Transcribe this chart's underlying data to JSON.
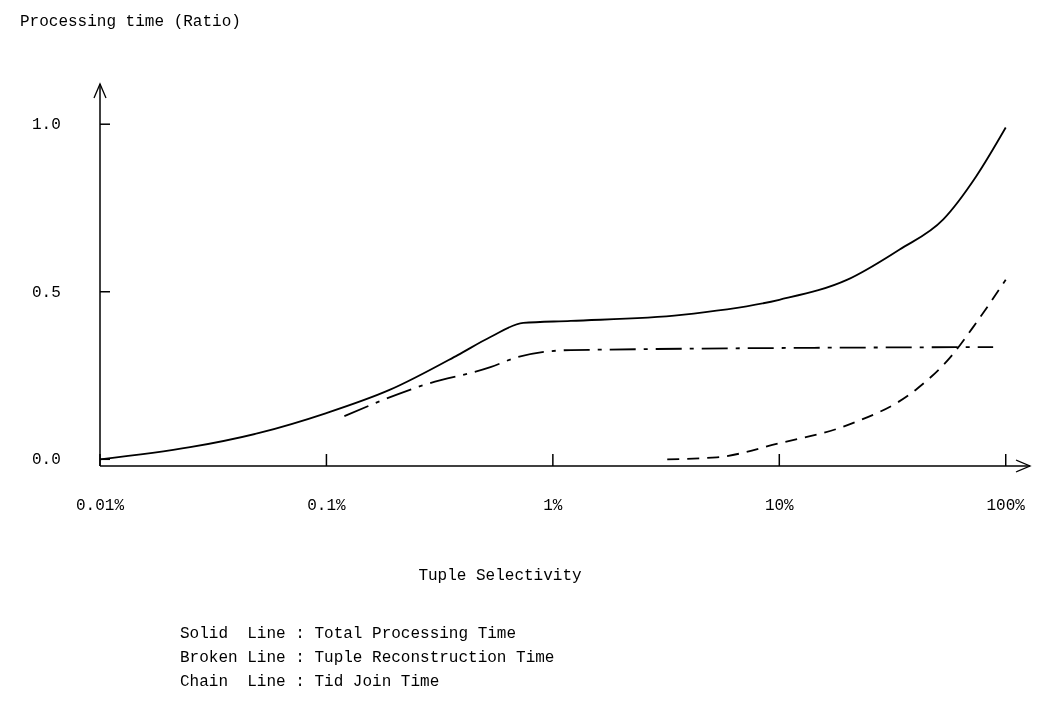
{
  "chart_data": {
    "type": "line",
    "xlabel": "Tuple Selectivity",
    "ylabel": "Processing time (Ratio)",
    "log": "x",
    "xlim": [
      0.01,
      128
    ],
    "ylim": [
      -0.02,
      1.12
    ],
    "xticks": [
      {
        "value": 0.01,
        "label": "0.01%"
      },
      {
        "value": 0.1,
        "label": "0.1%"
      },
      {
        "value": 1,
        "label": "1%"
      },
      {
        "value": 10,
        "label": "10%"
      },
      {
        "value": 100,
        "label": "100%"
      }
    ],
    "yticks": [
      {
        "value": 0,
        "label": "0.0"
      },
      {
        "value": 0.5,
        "label": "0.5"
      },
      {
        "value": 1,
        "label": "1.0"
      }
    ],
    "marker": "none",
    "series": [
      {
        "color": "#000000",
        "line_style": "solid",
        "x": [
          0.01,
          0.025,
          0.05,
          0.1,
          0.19,
          0.38,
          0.53,
          0.74,
          1.2,
          3.7,
          10,
          20,
          34,
          53,
          74,
          100
        ],
        "values": [
          0.0,
          0.036,
          0.078,
          0.138,
          0.207,
          0.311,
          0.365,
          0.407,
          0.413,
          0.431,
          0.476,
          0.536,
          0.626,
          0.716,
          0.844,
          0.99
        ]
      },
      {
        "color": "#000000",
        "line_style": "dashed",
        "x": [
          3.2,
          5.3,
          10,
          20,
          40,
          57,
          74,
          100
        ],
        "values": [
          0.0,
          0.006,
          0.048,
          0.102,
          0.207,
          0.305,
          0.407,
          0.536
        ]
      },
      {
        "color": "#000000",
        "line_style": "dashdot",
        "x": [
          0.12,
          0.27,
          0.53,
          0.7,
          1.2,
          88
        ],
        "values": [
          0.129,
          0.222,
          0.275,
          0.305,
          0.326,
          0.335
        ]
      }
    ],
    "annotations": [
      "Solid  Line : Total Processing Time",
      "Broken Line : Tuple Reconstruction Time",
      "Chain  Line : Tid Join Time"
    ]
  }
}
